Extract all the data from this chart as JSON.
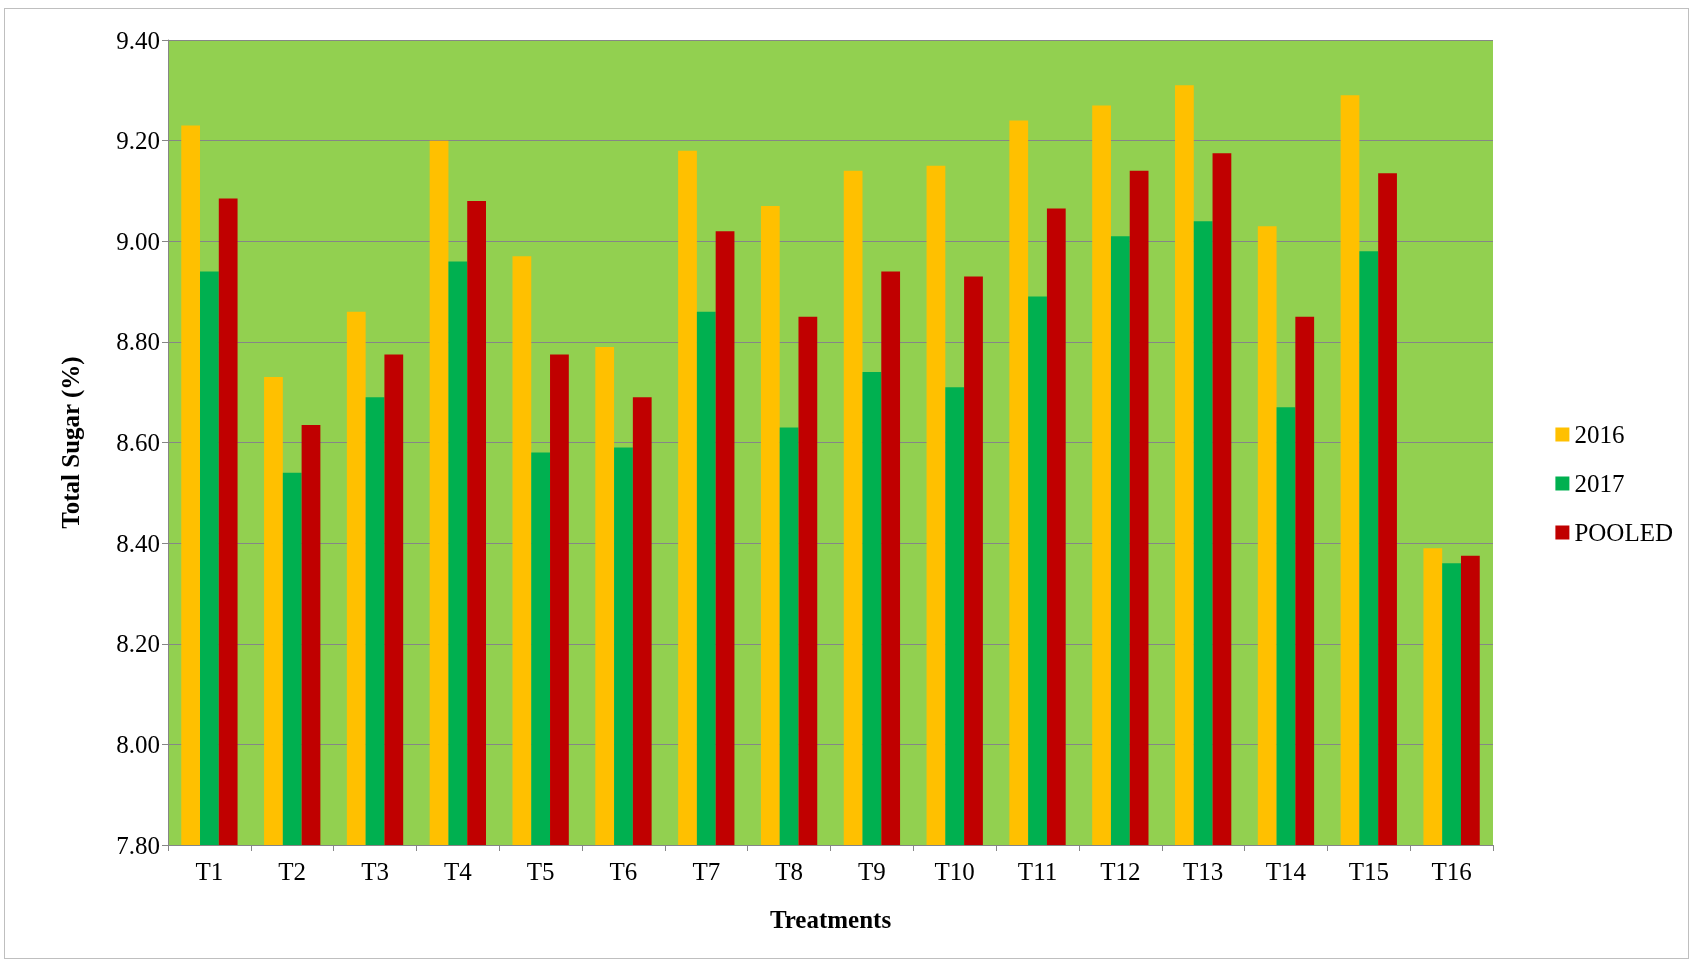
{
  "chart_data": {
    "type": "bar",
    "xlabel": "Treatments",
    "ylabel": "Total Sugar (%)",
    "categories": [
      "T1",
      "T2",
      "T3",
      "T4",
      "T5",
      "T6",
      "T7",
      "T8",
      "T9",
      "T10",
      "T11",
      "T12",
      "T13",
      "T14",
      "T15",
      "T16"
    ],
    "series": [
      {
        "name": "2016",
        "color": "#ffc000",
        "values": [
          9.23,
          8.73,
          8.86,
          9.2,
          8.97,
          8.79,
          9.18,
          9.07,
          9.14,
          9.15,
          9.24,
          9.27,
          9.31,
          9.03,
          9.29,
          8.39
        ]
      },
      {
        "name": "2017",
        "color": "#00b050",
        "values": [
          8.94,
          8.54,
          8.69,
          8.96,
          8.58,
          8.59,
          8.86,
          8.63,
          8.74,
          8.71,
          8.89,
          9.01,
          9.04,
          8.67,
          8.98,
          8.36
        ]
      },
      {
        "name": "POOLED",
        "color": "#c00000",
        "values": [
          9.085,
          8.635,
          8.775,
          9.08,
          8.775,
          8.69,
          9.02,
          8.85,
          8.94,
          8.93,
          9.065,
          9.14,
          9.175,
          8.85,
          9.135,
          8.375
        ]
      }
    ],
    "ylim": [
      7.8,
      9.4
    ],
    "yticks": [
      {
        "value": 7.8,
        "label": "7.80"
      },
      {
        "value": 8.0,
        "label": "8.00"
      },
      {
        "value": 8.2,
        "label": "8.20"
      },
      {
        "value": 8.4,
        "label": "8.40"
      },
      {
        "value": 8.6,
        "label": "8.60"
      },
      {
        "value": 8.8,
        "label": "8.80"
      },
      {
        "value": 9.0,
        "label": "9.00"
      },
      {
        "value": 9.2,
        "label": "9.20"
      },
      {
        "value": 9.4,
        "label": "9.40"
      }
    ],
    "grid": "y",
    "legend": "right"
  }
}
